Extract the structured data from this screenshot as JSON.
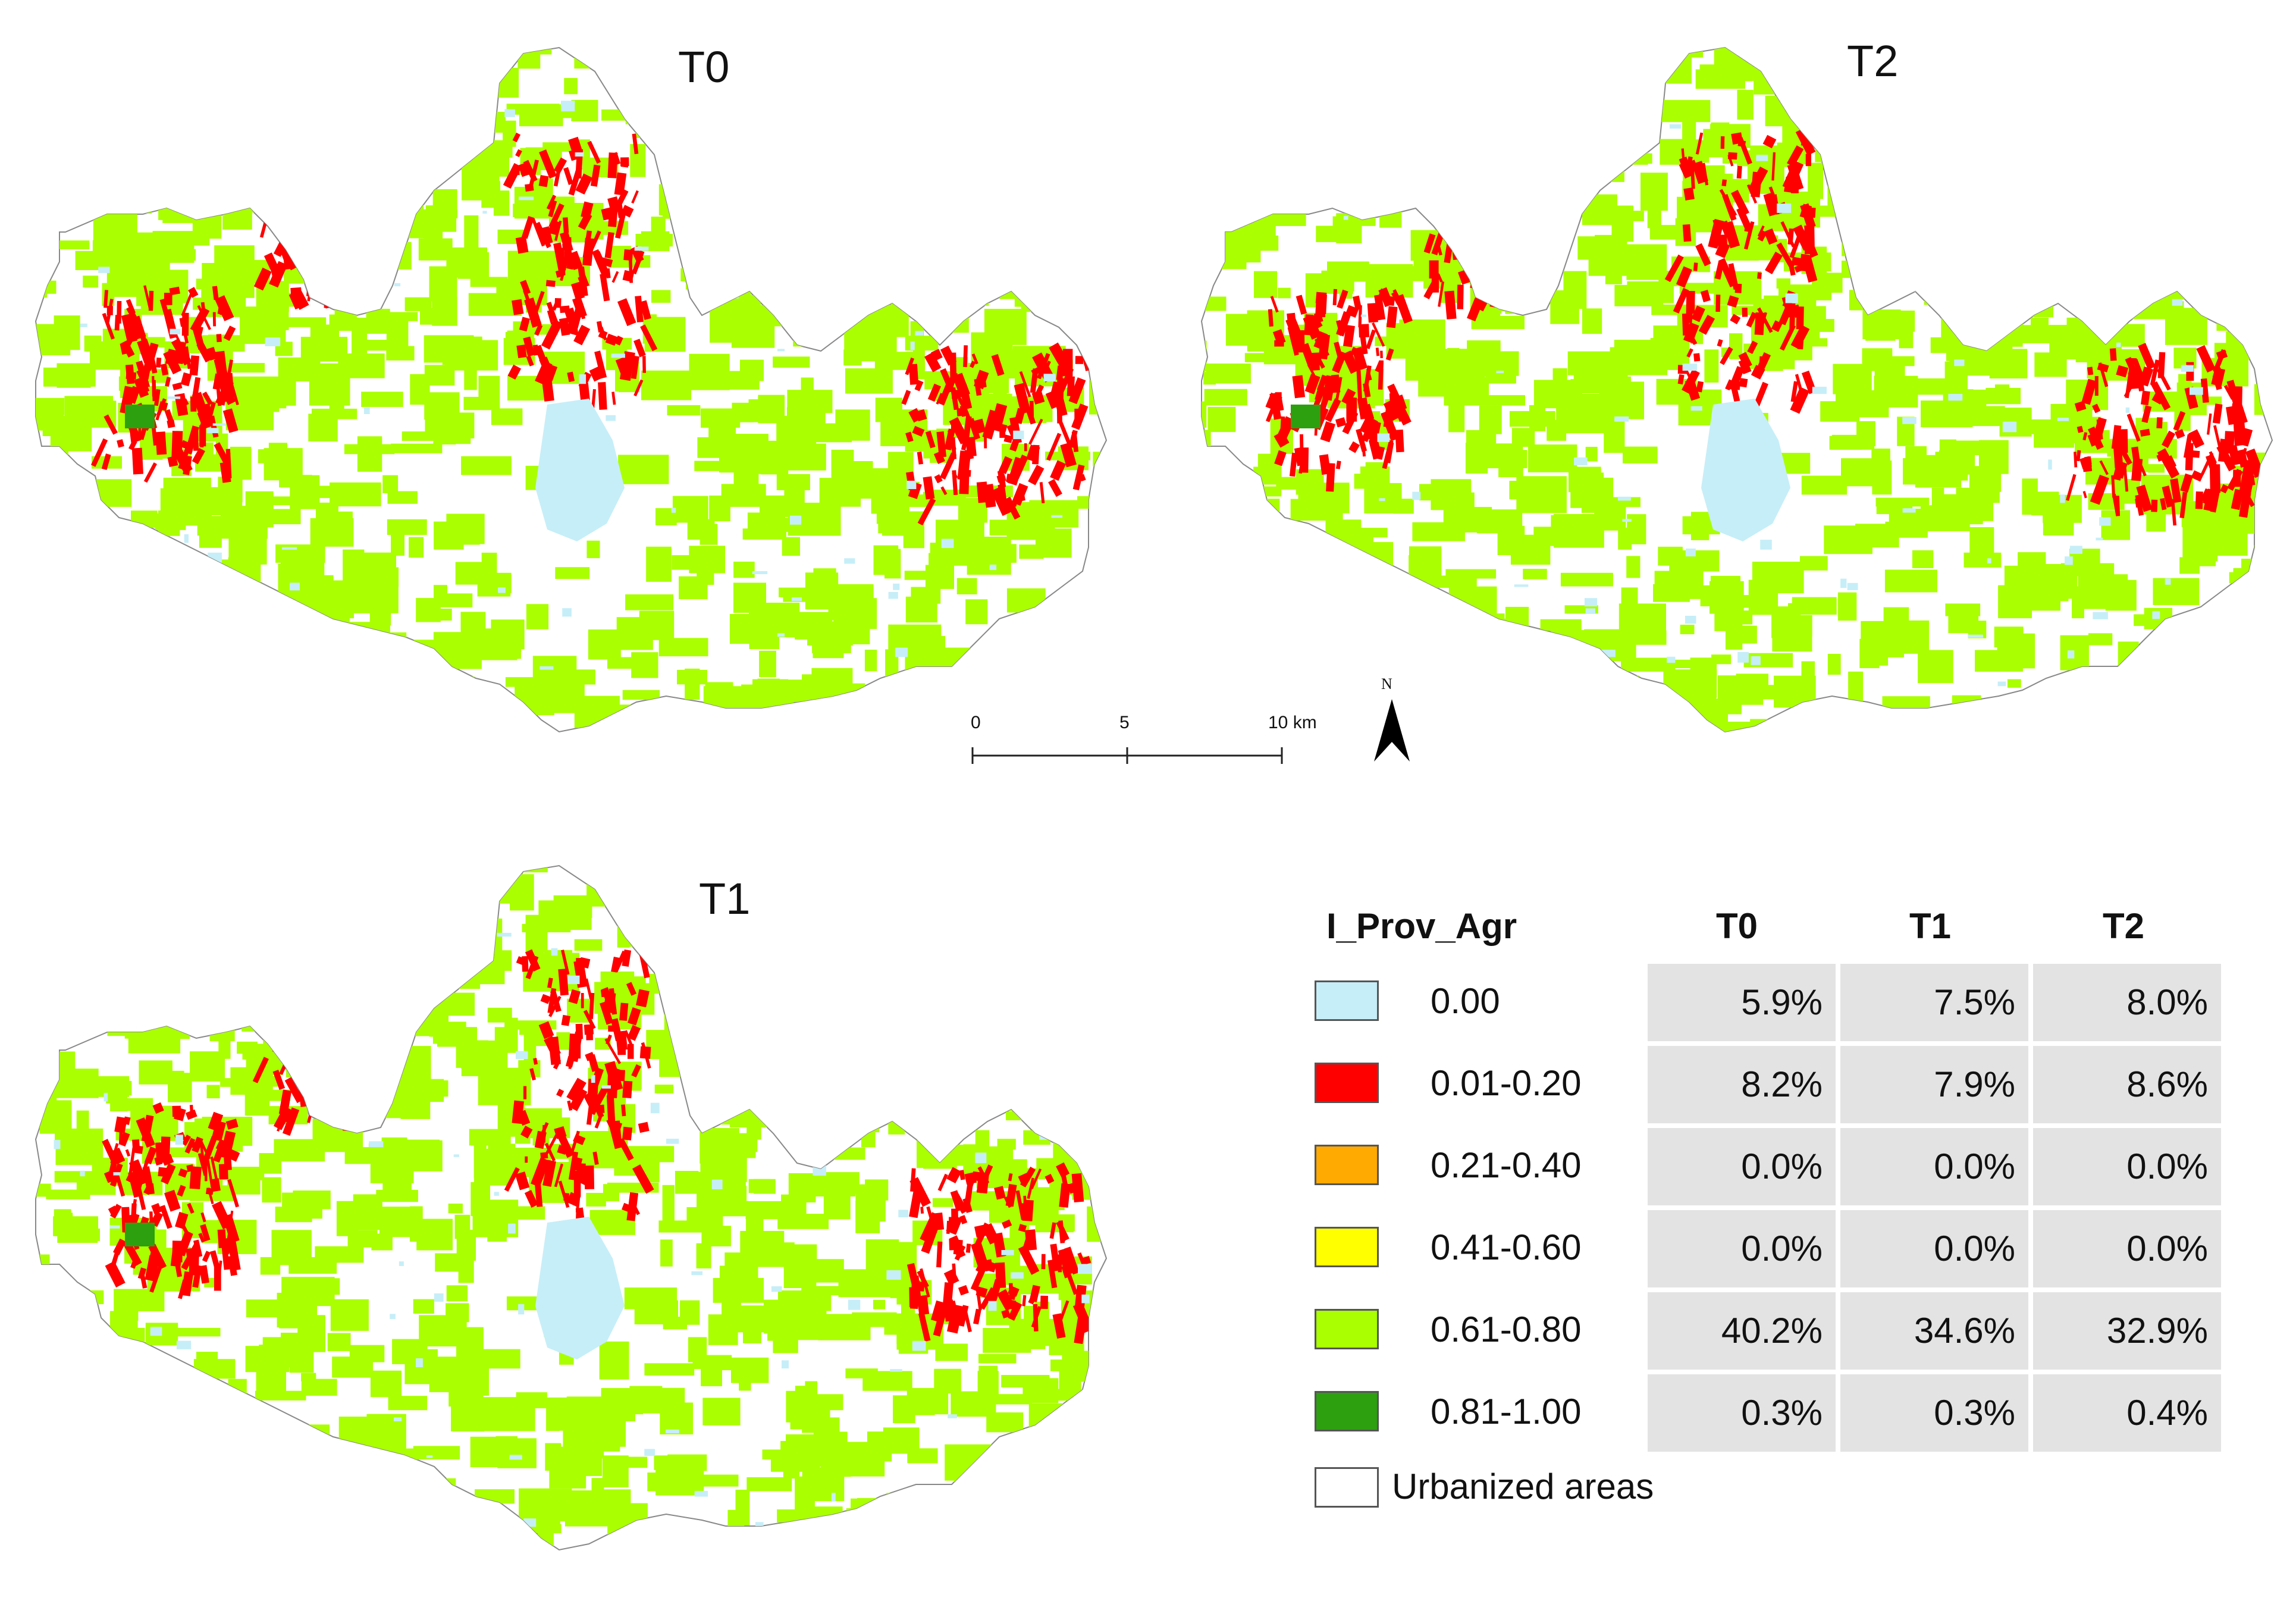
{
  "maps": [
    {
      "title": "T0"
    },
    {
      "title": "T2"
    },
    {
      "title": "T1"
    }
  ],
  "scale_bar": {
    "labels": [
      "0",
      "5",
      "10 km"
    ]
  },
  "north_arrow": {
    "label": "N"
  },
  "legend": {
    "header": "I_Prov_Agr",
    "columns": [
      "T0",
      "T1",
      "T2"
    ],
    "rows": [
      {
        "label": "0.00",
        "color": "#c6eef8",
        "values": [
          "5.9%",
          "7.5%",
          "8.0%"
        ]
      },
      {
        "label": "0.01-0.20",
        "color": "#ff0000",
        "values": [
          "8.2%",
          "7.9%",
          "8.6%"
        ]
      },
      {
        "label": "0.21-0.40",
        "color": "#ffaa00",
        "values": [
          "0.0%",
          "0.0%",
          "0.0%"
        ]
      },
      {
        "label": "0.41-0.60",
        "color": "#ffff00",
        "values": [
          "0.0%",
          "0.0%",
          "0.0%"
        ]
      },
      {
        "label": "0.61-0.80",
        "color": "#aaff00",
        "values": [
          "40.2%",
          "34.6%",
          "32.9%"
        ]
      },
      {
        "label": "0.81-1.00",
        "color": "#2ca00f",
        "values": [
          "0.3%",
          "0.3%",
          "0.4%"
        ]
      }
    ],
    "urban": {
      "label": "Urbanized areas",
      "color": "#ffffff"
    }
  }
}
